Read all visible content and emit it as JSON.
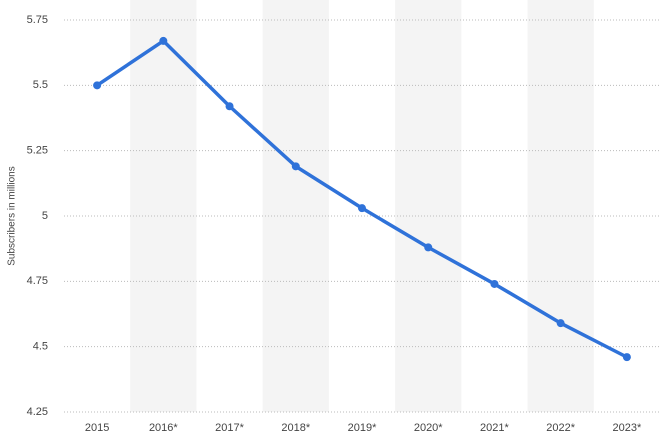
{
  "chart_data": {
    "type": "line",
    "y_label": "Subscribers in millions",
    "categories": [
      "2015",
      "2016*",
      "2017*",
      "2018*",
      "2019*",
      "2020*",
      "2021*",
      "2022*",
      "2023*"
    ],
    "values": [
      5.5,
      5.67,
      5.42,
      5.19,
      5.03,
      4.88,
      4.74,
      4.59,
      4.46
    ],
    "color": "#2f72d9",
    "ylim": [
      4.25,
      5.75
    ],
    "yticks": [
      4.25,
      4.5,
      4.75,
      5,
      5.25,
      5.5,
      5.75
    ],
    "grid": true
  }
}
